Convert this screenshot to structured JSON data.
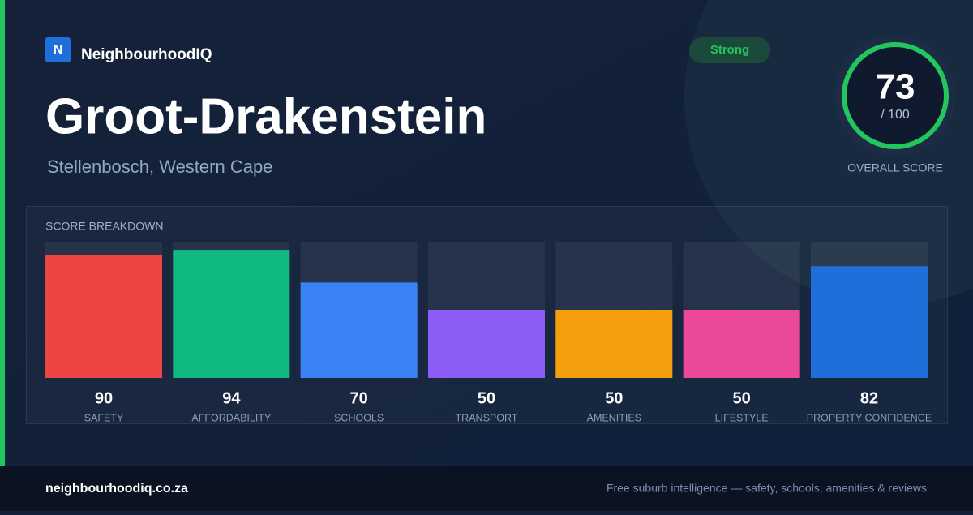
{
  "brand": {
    "logo": "N",
    "name": "NeighbourhoodIQ"
  },
  "title": "Groot-Drakenstein",
  "subtitle": "Stellenbosch, Western Cape",
  "badge": "Strong",
  "score": {
    "value": 73,
    "out_of": "/ 100",
    "label": "OVERALL SCORE"
  },
  "chart_data": {
    "type": "bar",
    "title": "SCORE BREAKDOWN",
    "categories": [
      "SAFETY",
      "AFFORDABILITY",
      "SCHOOLS",
      "TRANSPORT",
      "AMENITIES",
      "LIFESTYLE",
      "PROPERTY CONFIDENCE"
    ],
    "values": [
      90,
      94,
      70,
      50,
      50,
      50,
      82
    ],
    "colors": [
      "#ef4444",
      "#10b981",
      "#3b82f6",
      "#8b5cf6",
      "#f59e0b",
      "#ec4899",
      "#1e6fd9"
    ],
    "ylim": [
      0,
      100
    ]
  },
  "footer": {
    "site": "neighbourhoodiq.co.za",
    "tagline": "Free suburb intelligence — safety, schools, amenities & reviews"
  }
}
